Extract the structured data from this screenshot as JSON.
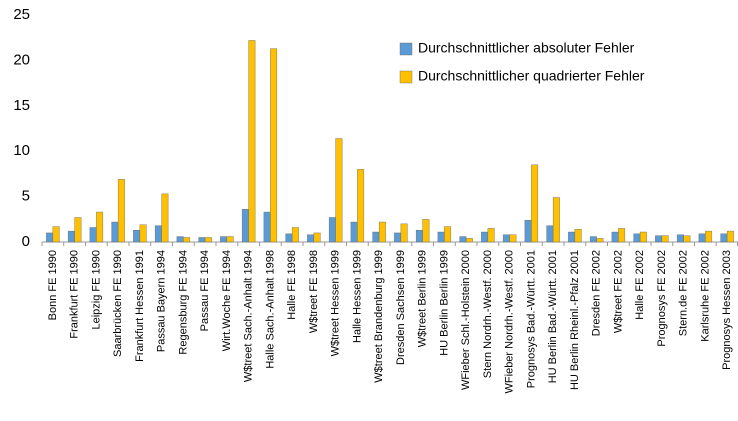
{
  "chart_data": {
    "type": "bar",
    "categories": [
      "Bonn FE 1990",
      "Frankfurt FE 1990",
      "Leipzig FE 1990",
      "Saarbrücken FE 1990",
      "Frankfurt Hessen 1991",
      "Passau Bayern 1994",
      "Regensburg FE 1994",
      "Passau FE 1994",
      "Wirt.Woche FE 1994",
      "W$treet Sach.-Anhalt 1994",
      "Halle Sach.-Anhalt 1998",
      "Halle FE 1998",
      "W$treet FE 1998",
      "W$treet Hessen 1999",
      "Halle Hessen 1999",
      "W$treet Brandenburg 1999",
      "Dresden Sachsen 1999",
      "W$treet Berlin 1999",
      "HU Berlin Berlin 1999",
      "WFieber Schl.-Holstein 2000",
      "Stern Nordrh.-Westf. 2000",
      "WFieber Nordrh.-Westf. 2000",
      "Prognosys Bad.-Württ. 2001",
      "HU Berlin Bad.-Württ. 2001",
      "HU Berlin Rheinl.-Pfalz 2001",
      "Dresden FE 2002",
      "W$treet FE 2002",
      "Halle FE 2002",
      "Prognosys FE 2002",
      "Stern.de FE 2002",
      "Karlsruhe FE 2002",
      "Prognosys Hessen 2003"
    ],
    "series": [
      {
        "name": "Durchschnittlicher absoluter Fehler",
        "color": "#5b9bd5",
        "values": [
          1.0,
          1.2,
          1.6,
          2.2,
          1.3,
          1.8,
          0.6,
          0.5,
          0.6,
          3.6,
          3.3,
          0.9,
          0.8,
          2.7,
          2.2,
          1.1,
          1.0,
          1.3,
          1.1,
          0.6,
          1.1,
          0.8,
          2.4,
          1.8,
          1.1,
          0.6,
          1.1,
          0.9,
          0.7,
          0.8,
          0.9,
          0.9
        ]
      },
      {
        "name": "Durchschnittlicher quadrierter Fehler",
        "color": "#ffc000",
        "values": [
          1.7,
          2.7,
          3.3,
          6.9,
          1.9,
          5.3,
          0.5,
          0.5,
          0.6,
          22.2,
          21.3,
          1.6,
          1.0,
          11.4,
          8.0,
          2.2,
          2.0,
          2.5,
          1.7,
          0.4,
          1.5,
          0.8,
          8.5,
          4.9,
          1.4,
          0.4,
          1.5,
          1.1,
          0.7,
          0.7,
          1.2,
          1.2
        ]
      }
    ],
    "ylim": [
      0,
      25
    ],
    "yticks": [
      0,
      5,
      10,
      15,
      20,
      25
    ],
    "legend": "top-right"
  }
}
